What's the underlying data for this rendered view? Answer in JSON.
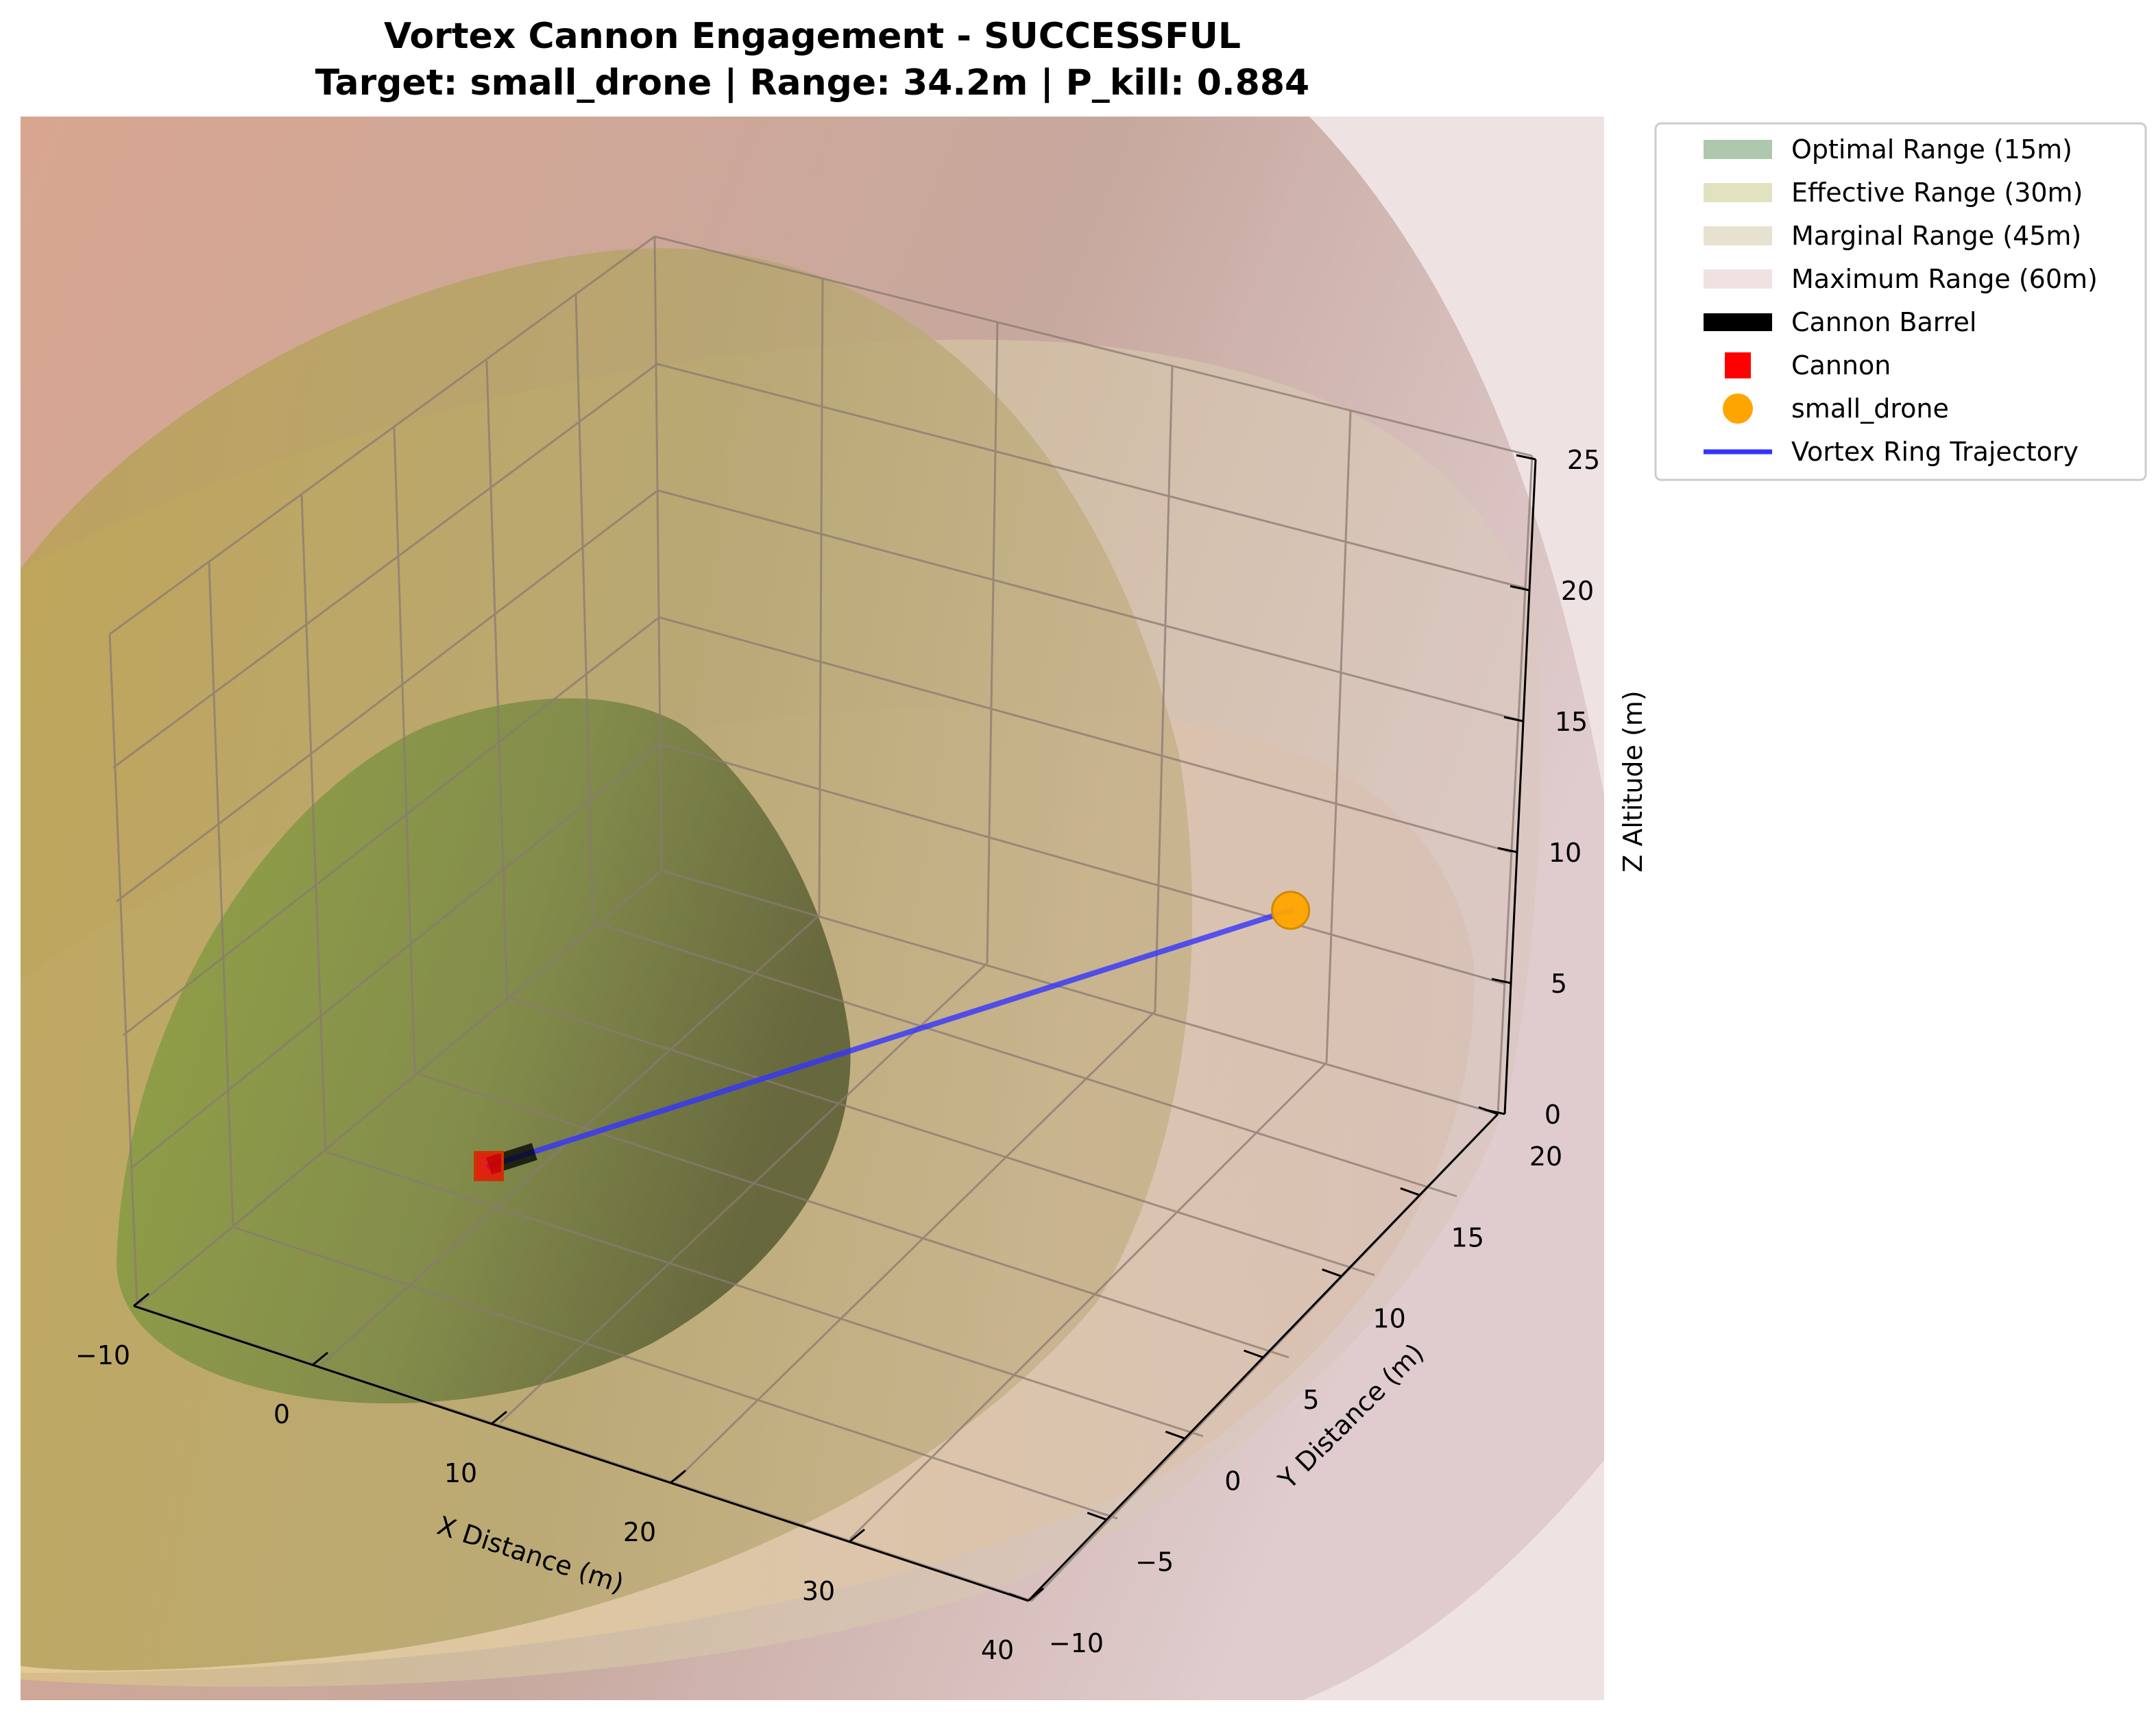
{
  "chart_data": {
    "type": "scatter",
    "projection": "3d",
    "title": "Vortex Cannon Engagement - SUCCESSFUL",
    "subtitle": "Target: small_drone | Range: 34.2m | P_kill: 0.884",
    "xlabel": "X Distance (m)",
    "ylabel": "Y Distance (m)",
    "zlabel": "Z Altitude (m)",
    "xlim": [
      -10,
      40
    ],
    "ylim": [
      -10,
      20
    ],
    "zlim": [
      0,
      25
    ],
    "x_ticks": [
      "−10",
      "0",
      "10",
      "20",
      "30",
      "40"
    ],
    "y_ticks": [
      "−10",
      "−5",
      "0",
      "5",
      "10",
      "15",
      "20"
    ],
    "z_ticks": [
      "0",
      "5",
      "10",
      "15",
      "20",
      "25"
    ],
    "grid": true,
    "legend_position": "outside-right",
    "range_zones": [
      {
        "name": "Optimal Range (15m)",
        "radius": 15,
        "color": "#6b9b6b"
      },
      {
        "name": "Effective Range (30m)",
        "radius": 30,
        "color": "#c8cc8c"
      },
      {
        "name": "Marginal Range (45m)",
        "radius": 45,
        "color": "#d4c8a8"
      },
      {
        "name": "Maximum Range (60m)",
        "radius": 60,
        "color": "#e4c8cc"
      }
    ],
    "cannon": {
      "name": "Cannon",
      "x": 0,
      "y": 0,
      "z": 2,
      "color": "#ff0000"
    },
    "barrel": {
      "name": "Cannon Barrel",
      "color": "#000000"
    },
    "target": {
      "name": "small_drone",
      "x": 30,
      "y": 15,
      "z": 10,
      "color": "#ffa500"
    },
    "trajectory": {
      "name": "Vortex Ring Trajectory",
      "color": "#3333ff"
    }
  }
}
